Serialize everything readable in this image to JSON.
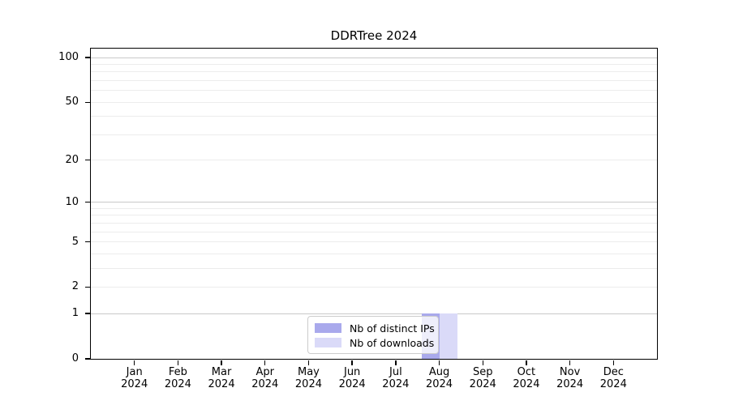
{
  "chart_data": {
    "type": "bar",
    "title": "DDRTree 2024",
    "categories": [
      "Jan",
      "Feb",
      "Mar",
      "Apr",
      "May",
      "Jun",
      "Jul",
      "Aug",
      "Sep",
      "Oct",
      "Nov",
      "Dec"
    ],
    "x_year_suffix": "2024",
    "series": [
      {
        "name": "Nb of distinct IPs",
        "color": "#a9a9ec",
        "values": [
          0,
          0,
          0,
          0,
          0,
          0,
          0,
          1,
          0,
          0,
          0,
          0
        ]
      },
      {
        "name": "Nb of downloads",
        "color": "#dadaf8",
        "values": [
          0,
          0,
          0,
          0,
          0,
          0,
          0,
          1,
          0,
          0,
          0,
          0
        ]
      }
    ],
    "y_axis": {
      "scale": "log1p",
      "ticks": [
        0,
        1,
        2,
        5,
        10,
        20,
        50,
        100
      ],
      "major_gridlines": [
        1,
        10,
        100
      ],
      "minor_gridlines": [
        2,
        3,
        4,
        5,
        6,
        7,
        8,
        9,
        20,
        30,
        40,
        50,
        60,
        70,
        80,
        90
      ],
      "max": 115,
      "min": 0
    },
    "legend": {
      "position": "bottom-center"
    },
    "colors": {
      "grid_major": "#c9c9c9",
      "grid_minor": "#ececec",
      "axis": "#000000",
      "background": "#ffffff"
    }
  }
}
